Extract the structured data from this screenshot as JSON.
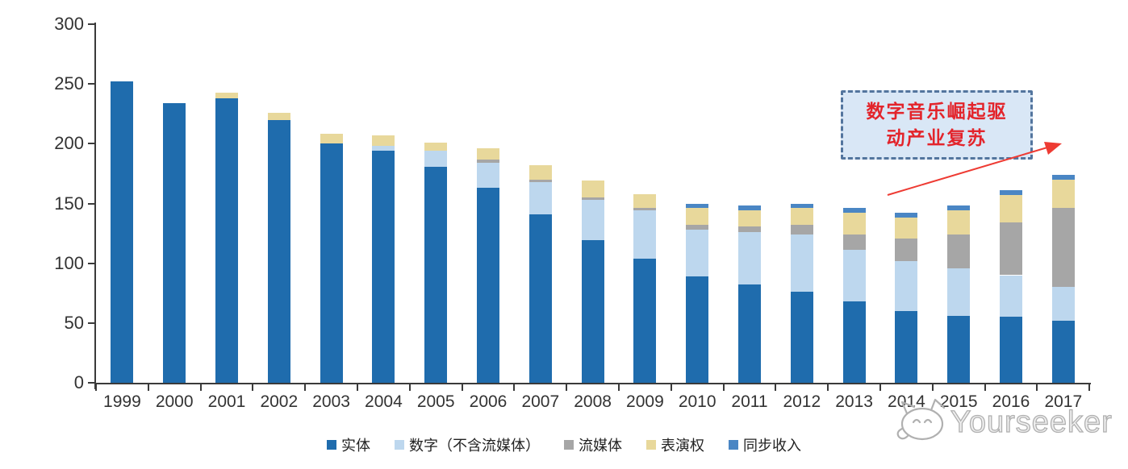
{
  "chart_data": {
    "type": "bar",
    "stacked": true,
    "title": "",
    "xlabel": "",
    "ylabel": "",
    "ylim": [
      0,
      300
    ],
    "yticks": [
      0,
      50,
      100,
      150,
      200,
      250,
      300
    ],
    "grid": false,
    "legend_position": "bottom",
    "categories": [
      "1999",
      "2000",
      "2001",
      "2002",
      "2003",
      "2004",
      "2005",
      "2006",
      "2007",
      "2008",
      "2009",
      "2010",
      "2011",
      "2012",
      "2013",
      "2014",
      "2015",
      "2016",
      "2017"
    ],
    "series": [
      {
        "name": "实体",
        "color": "#1f6cad",
        "values": [
          252,
          234,
          238,
          220,
          200,
          194,
          181,
          163,
          141,
          119,
          104,
          89,
          82,
          76,
          68,
          60,
          56,
          55,
          52
        ]
      },
      {
        "name": "数字（不含流媒体）",
        "color": "#bdd7ee",
        "values": [
          0,
          0,
          0,
          0,
          0,
          4,
          13,
          21,
          27,
          34,
          40,
          39,
          44,
          48,
          43,
          42,
          40,
          35,
          28
        ]
      },
      {
        "name": "流媒体",
        "color": "#a6a6a6",
        "values": [
          0,
          0,
          0,
          0,
          0,
          0,
          0,
          3,
          2,
          2,
          2,
          4,
          5,
          8,
          13,
          19,
          28,
          44,
          66
        ]
      },
      {
        "name": "表演权",
        "color": "#e8d89b",
        "values": [
          0,
          0,
          5,
          6,
          8,
          9,
          7,
          9,
          12,
          14,
          12,
          14,
          13,
          14,
          18,
          17,
          20,
          23,
          24
        ]
      },
      {
        "name": "同步收入",
        "color": "#4a86c4",
        "values": [
          0,
          0,
          0,
          0,
          0,
          0,
          0,
          0,
          0,
          0,
          0,
          4,
          4,
          4,
          4,
          4,
          4,
          4,
          4
        ]
      }
    ],
    "totals": [
      252,
      234,
      243,
      226,
      208,
      207,
      201,
      196,
      182,
      169,
      158,
      150,
      148,
      150,
      146,
      142,
      148,
      161,
      174
    ]
  },
  "annotation": {
    "line1": "数字音乐崛起驱",
    "line2": "动产业复苏",
    "box_fill": "#d9e7f6",
    "box_border": "#53759e",
    "text_color": "#e3242b",
    "arrow_color": "#ee3b33"
  },
  "watermark": {
    "text": "Yourseeker",
    "logo": "cat-logo",
    "color": "#b0b0b0"
  },
  "axis": {
    "color": "#3a3a3a",
    "label_color": "#333333"
  }
}
